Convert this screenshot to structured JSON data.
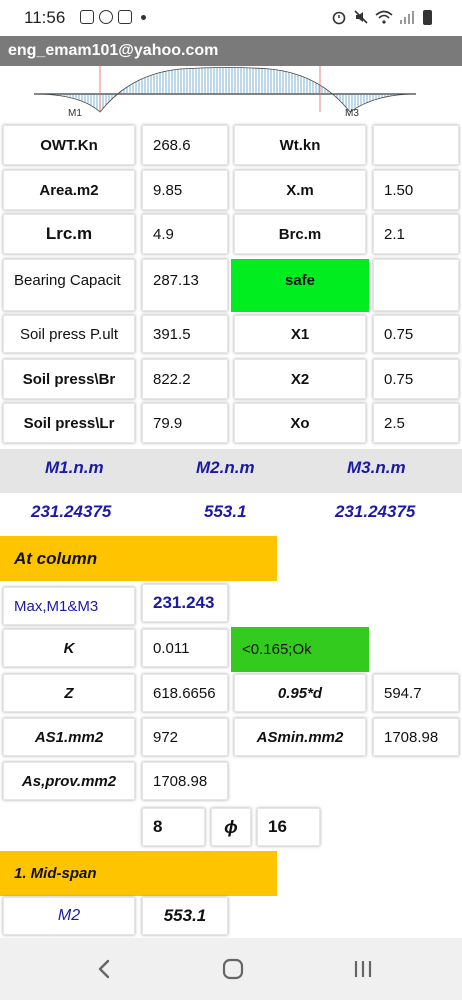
{
  "status_bar": {
    "time": "11:56"
  },
  "app": {
    "title": "eng_emam101@yahoo.com"
  },
  "diagram": {
    "label_m1": "M1",
    "label_m3": "M3"
  },
  "table1": {
    "owt_label": "OWT.Kn",
    "owt_value": "268.6",
    "wt_label": "Wt.kn",
    "wt_value": "",
    "area_label": "Area.m2",
    "area_value": "9.85",
    "xm_label": "X.m",
    "xm_value": "1.50",
    "lrc_label": "Lrc.m",
    "lrc_value": "4.9",
    "brc_label": "Brc.m",
    "brc_value": "2.1",
    "bearing_label": "Bearing Capacit",
    "bearing_value": "287.13",
    "safe_label": "safe",
    "safe_extra": "",
    "pult_label": "Soil press P.ult",
    "pult_value": "391.5",
    "x1_label": "X1",
    "x1_value": "0.75",
    "pbr_label": "Soil press\\Br",
    "pbr_value": "822.2",
    "x2_label": "X2",
    "x2_value": "0.75",
    "plr_label": "Soil press\\Lr",
    "plr_value": "79.9",
    "xo_label": "Xo",
    "xo_value": "2.5"
  },
  "moments": {
    "m1_label": "M1.n.m",
    "m2_label": "M2.n.m",
    "m3_label": "M3.n.m",
    "m1_value": "231.24375",
    "m2_value": "553.1",
    "m3_value": "231.24375"
  },
  "at_column": {
    "heading": "At column",
    "max_label": "Max,M1&M3",
    "max_value": "231.243",
    "k_label": "K",
    "k_value": "0.011",
    "k_check": "<0.165;Ok",
    "z_label": "Z",
    "z_value": "618.6656",
    "d_label": "0.95*d",
    "d_value": "594.7",
    "as1_label": "AS1.mm2",
    "as1_value": "972",
    "asmin_label": "ASmin.mm2",
    "asmin_value": "1708.98",
    "asprov_label": "As,prov.mm2",
    "asprov_value": "1708.98",
    "bar_count": "8",
    "phi_symbol": "ϕ",
    "bar_dia": "16"
  },
  "mid_span": {
    "heading": "1. Mid-span",
    "m2_label": "M2",
    "m2_value": "553.1"
  },
  "colors": {
    "appbar": "#7a7a7a",
    "safe": "#00ee1f",
    "ok": "#33cc1e",
    "heading": "#ffc400",
    "moment_text": "#1a1aa8"
  }
}
